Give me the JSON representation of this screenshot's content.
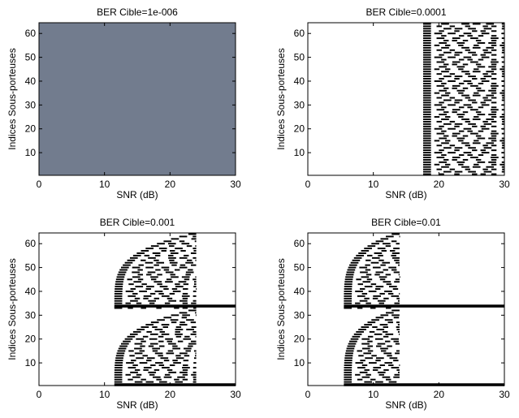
{
  "chart_data": [
    {
      "type": "heatmap",
      "title": "BER Cible=1e-006",
      "xlabel": "SNR (dB)",
      "ylabel": "Indices Sous-porteuses",
      "xlim": [
        0,
        30
      ],
      "ylim": [
        1,
        64
      ],
      "xticks": [
        "0",
        "10",
        "20",
        "30"
      ],
      "yticks": [
        "10",
        "20",
        "30",
        "40",
        "50",
        "60"
      ],
      "fill_color": "#727c8e",
      "threshold_snr": null,
      "pilot_rows": [],
      "description_pattern": "uniform"
    },
    {
      "type": "heatmap",
      "title": "BER Cible=0.0001",
      "xlabel": "SNR (dB)",
      "ylabel": "Indices Sous-porteuses",
      "xlim": [
        0,
        30
      ],
      "ylim": [
        1,
        64
      ],
      "xticks": [
        "0",
        "10",
        "20",
        "30"
      ],
      "yticks": [
        "10",
        "20",
        "30",
        "40",
        "50",
        "60"
      ],
      "fill_color": "#000000",
      "threshold_snr": 17.6,
      "pilot_rows": [],
      "bars_end_snr": 30
    },
    {
      "type": "heatmap",
      "title": "BER Cible=0.001",
      "xlabel": "SNR (dB)",
      "ylabel": "Indices Sous-porteuses",
      "xlim": [
        0,
        30
      ],
      "ylim": [
        1,
        64
      ],
      "xticks": [
        "0",
        "10",
        "20",
        "30"
      ],
      "yticks": [
        "10",
        "20",
        "30",
        "40",
        "50",
        "60"
      ],
      "fill_color": "#000000",
      "threshold_snr": 11.5,
      "pilot_rows": [
        1,
        34
      ],
      "bars_end_snr": 24
    },
    {
      "type": "heatmap",
      "title": "BER Cible=0.01",
      "xlabel": "SNR (dB)",
      "ylabel": "Indices Sous-porteuses",
      "xlim": [
        0,
        30
      ],
      "ylim": [
        1,
        64
      ],
      "xticks": [
        "0",
        "10",
        "20",
        "30"
      ],
      "yticks": [
        "10",
        "20",
        "30",
        "40",
        "50",
        "60"
      ],
      "fill_color": "#000000",
      "threshold_snr": 5.5,
      "pilot_rows": [
        1,
        34
      ],
      "bars_end_snr": 14
    }
  ]
}
